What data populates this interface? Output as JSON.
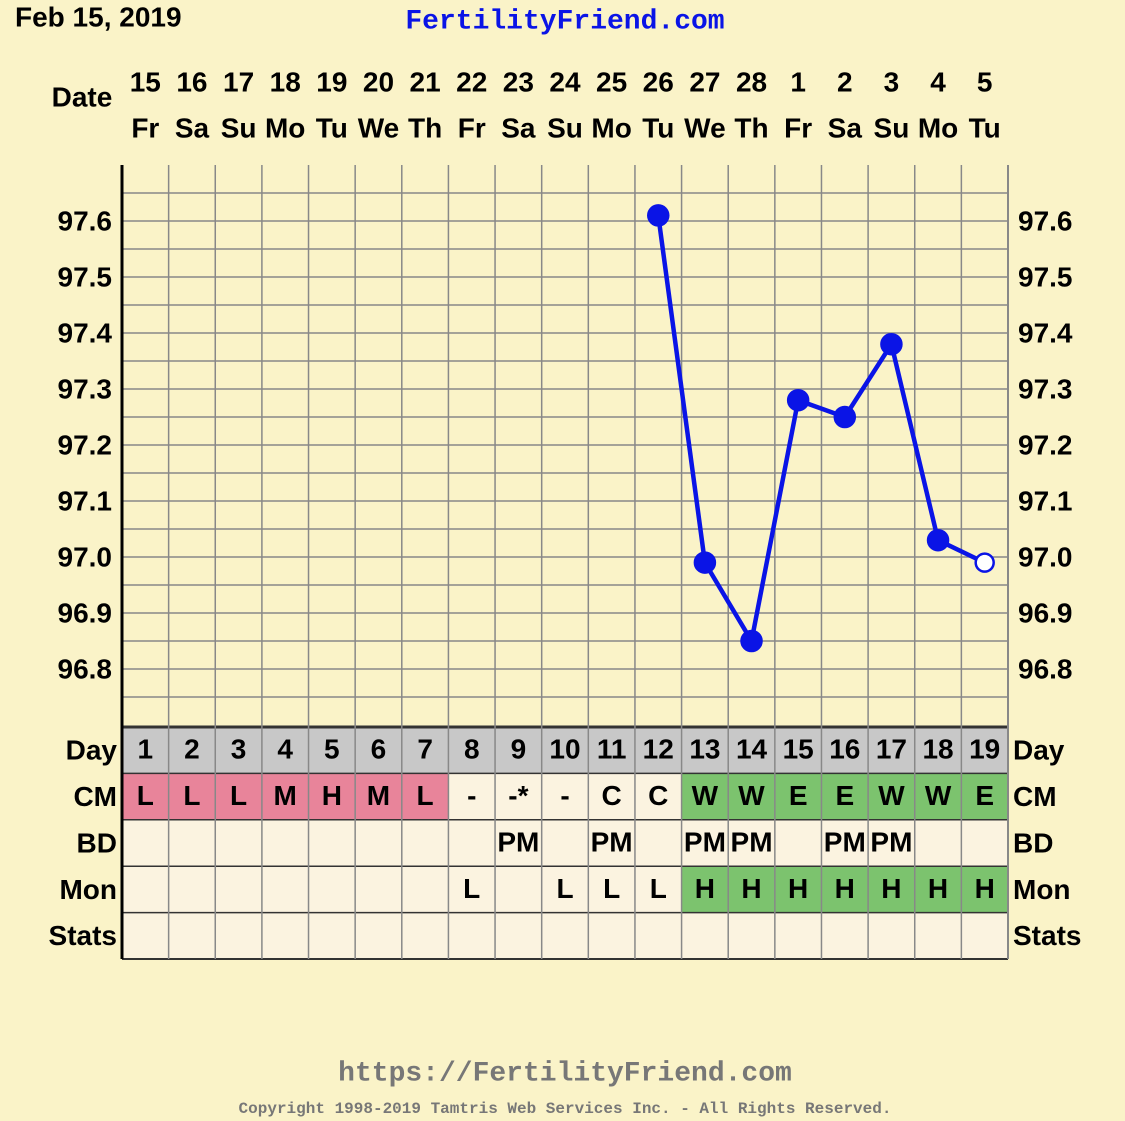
{
  "header": {
    "date": "Feb 15, 2019",
    "site": "FertilityFriend.com"
  },
  "chart_data": {
    "type": "line",
    "x_label": "Date",
    "categories": [
      "15",
      "16",
      "17",
      "18",
      "19",
      "20",
      "21",
      "22",
      "23",
      "24",
      "25",
      "26",
      "27",
      "28",
      "1",
      "2",
      "3",
      "4",
      "5"
    ],
    "weekdays": [
      "Fr",
      "Sa",
      "Su",
      "Mo",
      "Tu",
      "We",
      "Th",
      "Fr",
      "Sa",
      "Su",
      "Mo",
      "Tu",
      "We",
      "Th",
      "Fr",
      "Sa",
      "Su",
      "Mo",
      "Tu"
    ],
    "values": [
      null,
      null,
      null,
      null,
      null,
      null,
      null,
      null,
      null,
      null,
      null,
      97.61,
      96.99,
      96.85,
      97.28,
      97.25,
      97.38,
      97.03,
      96.99
    ],
    "color": "#0a14e6",
    "last_point_open": true,
    "ylim": [
      96.7,
      97.7
    ],
    "yticks": [
      96.8,
      96.9,
      {
        "value": 97,
        "label": "97.0"
      },
      97.1,
      97.2,
      97.3,
      97.4,
      97.5,
      97.6
    ],
    "yticks_minor": [
      96.75,
      96.85,
      96.95,
      97.05,
      97.15,
      97.25,
      97.35,
      97.45,
      97.55,
      97.65
    ],
    "grid": true
  },
  "table": {
    "rows": [
      {
        "label": "Day",
        "color": "#c8c8c8",
        "cells": [
          "1",
          "2",
          "3",
          "4",
          "5",
          "6",
          "7",
          "8",
          "9",
          "10",
          "11",
          "12",
          "13",
          "14",
          "15",
          "16",
          "17",
          "18",
          "19"
        ]
      },
      {
        "label": "CM",
        "cells": [
          "L",
          "L",
          "L",
          "M",
          "H",
          "M",
          "L",
          "-",
          "-*",
          "-",
          "C",
          "C",
          "W",
          "W",
          "E",
          "E",
          "W",
          "W",
          "E"
        ],
        "colors": [
          "#e8849a",
          "#e8849a",
          "#e8849a",
          "#e8849a",
          "#e8849a",
          "#e8849a",
          "#e8849a",
          "#fbf3e0",
          "#fbf3e0",
          "#fbf3e0",
          "#fbf3e0",
          "#fbf3e0",
          "#7cc36e",
          "#7cc36e",
          "#7cc36e",
          "#7cc36e",
          "#7cc36e",
          "#7cc36e",
          "#7cc36e"
        ]
      },
      {
        "label": "BD",
        "color": "#fbf3e0",
        "cells": [
          null,
          null,
          null,
          null,
          null,
          null,
          null,
          null,
          "PM",
          null,
          "PM",
          null,
          "PM",
          "PM",
          null,
          "PM",
          "PM",
          null,
          null
        ]
      },
      {
        "label": "Mon",
        "cells": [
          null,
          null,
          null,
          null,
          null,
          null,
          null,
          "L",
          null,
          "L",
          "L",
          "L",
          "H",
          "H",
          "H",
          "H",
          "H",
          "H",
          "H"
        ],
        "colors": [
          "#fbf3e0",
          "#fbf3e0",
          "#fbf3e0",
          "#fbf3e0",
          "#fbf3e0",
          "#fbf3e0",
          "#fbf3e0",
          "#fbf3e0",
          "#fbf3e0",
          "#fbf3e0",
          "#fbf3e0",
          "#fbf3e0",
          "#7cc36e",
          "#7cc36e",
          "#7cc36e",
          "#7cc36e",
          "#7cc36e",
          "#7cc36e",
          "#7cc36e"
        ]
      },
      {
        "label": "Stats",
        "color": "#fbf3e0",
        "cells": [
          null,
          null,
          null,
          null,
          null,
          null,
          null,
          null,
          null,
          null,
          null,
          null,
          null,
          null,
          null,
          null,
          null,
          null,
          null
        ]
      }
    ]
  },
  "footer": {
    "url": "https://FertilityFriend.com",
    "copyright": "Copyright 1998-2019 Tamtris Web Services Inc. - All Rights Reserved."
  }
}
